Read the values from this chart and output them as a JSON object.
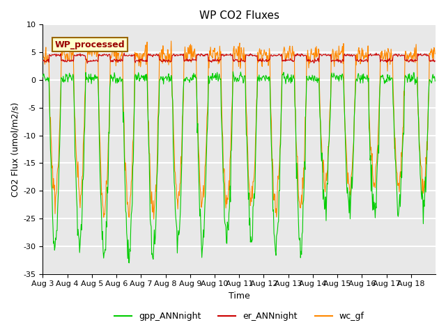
{
  "title": "WP CO2 Fluxes",
  "xlabel": "Time",
  "ylabel_display": "CO2 Flux (umol/m2/s)",
  "ylim": [
    -35,
    10
  ],
  "yticks": [
    -35,
    -30,
    -25,
    -20,
    -15,
    -10,
    -5,
    0,
    5,
    10
  ],
  "xtick_positions": [
    0,
    1,
    2,
    3,
    4,
    5,
    6,
    7,
    8,
    9,
    10,
    11,
    12,
    13,
    14,
    15
  ],
  "xtick_labels": [
    "Aug 3",
    "Aug 4",
    "Aug 5",
    "Aug 6",
    "Aug 7",
    "Aug 8",
    "Aug 9",
    "Aug 10",
    "Aug 11",
    "Aug 12",
    "Aug 13",
    "Aug 14",
    "Aug 15",
    "Aug 16",
    "Aug 17",
    "Aug 18"
  ],
  "colors": {
    "gpp": "#00CC00",
    "er": "#CC0000",
    "wc": "#FF8800",
    "annotation_bg": "#FFFFCC",
    "annotation_text": "#990000",
    "annotation_border": "#996600",
    "axes_bg": "#E8E8E8",
    "grid_color": "#FFFFFF"
  },
  "annotation_text": "WP_processed",
  "legend_labels": [
    "gpp_ANNnight",
    "er_ANNnight",
    "wc_gf"
  ],
  "n_days": 16,
  "points_per_day": 48
}
